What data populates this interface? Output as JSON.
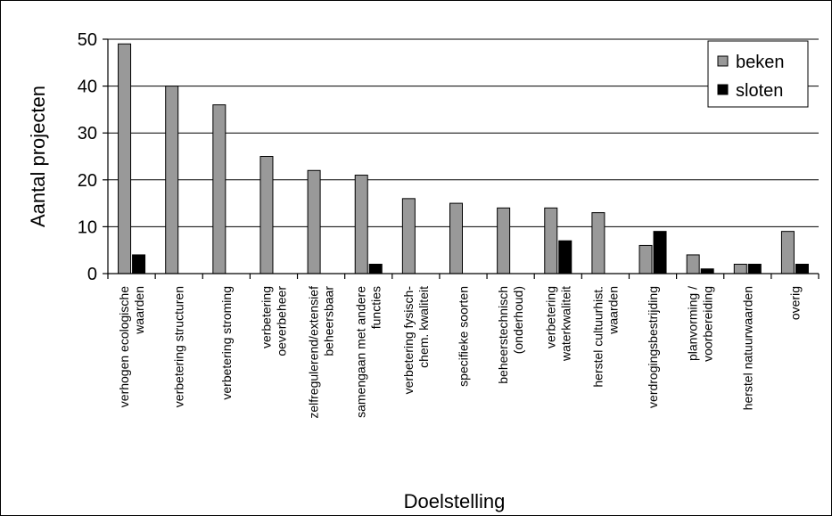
{
  "chart_data": {
    "type": "bar",
    "xlabel": "Doelstelling",
    "ylabel": "Aantal projecten",
    "ylim": [
      0,
      50
    ],
    "yticks": [
      0,
      10,
      20,
      30,
      40,
      50
    ],
    "grid": true,
    "legend_position": "top-right",
    "categories": [
      [
        "verhogen ecologische",
        "waarden"
      ],
      [
        "verbetering structuren"
      ],
      [
        "verbetering stroming"
      ],
      [
        "verbetering",
        "oeverbeheer"
      ],
      [
        "zelfregulerend/extensief",
        "beheersbaar"
      ],
      [
        "samengaan met andere",
        "functies"
      ],
      [
        "verbetering fysisch-",
        "chem. kwaliteit"
      ],
      [
        "specifieke soorten"
      ],
      [
        "beheerstechnisch",
        "(onderhoud)"
      ],
      [
        "verbetering",
        "waterkwaliteit"
      ],
      [
        "herstel cultuurhist.",
        "waarden"
      ],
      [
        "verdrogingsbestrijding"
      ],
      [
        "planvorming /",
        "voorbereiding"
      ],
      [
        "herstel natuurwaarden"
      ],
      [
        "overig"
      ]
    ],
    "series": [
      {
        "name": "beken",
        "color": "#999999",
        "values": [
          49,
          40,
          36,
          25,
          22,
          21,
          16,
          15,
          14,
          14,
          13,
          6,
          4,
          2,
          9
        ]
      },
      {
        "name": "sloten",
        "color": "#000000",
        "values": [
          4,
          0,
          0,
          0,
          0,
          2,
          0,
          0,
          0,
          7,
          0,
          9,
          1,
          2,
          2
        ]
      }
    ]
  }
}
